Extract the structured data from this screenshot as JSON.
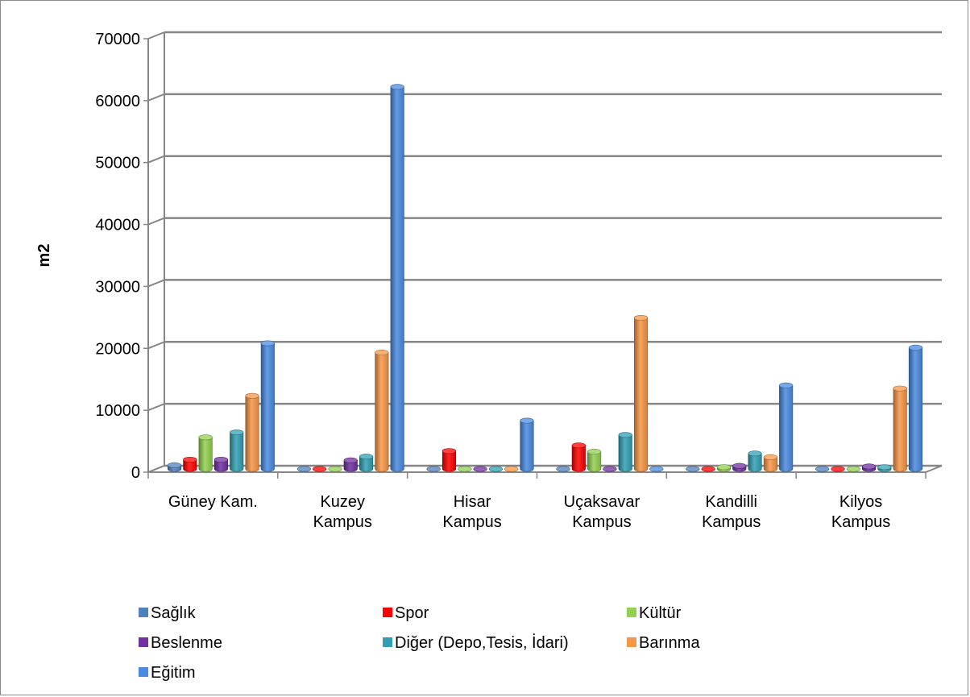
{
  "chart_data": {
    "type": "bar",
    "three_d": true,
    "title": "",
    "xlabel": "",
    "ylabel": "m2",
    "ylim": [
      0,
      70000
    ],
    "yticks": [
      0,
      10000,
      20000,
      30000,
      40000,
      50000,
      60000,
      70000
    ],
    "grid": true,
    "legend_position": "bottom",
    "categories": [
      [
        "Güney Kam."
      ],
      [
        "Kuzey",
        "Kampus"
      ],
      [
        "Hisar",
        "Kampus"
      ],
      [
        "Uçaksavar",
        "Kampus"
      ],
      [
        "Kandilli",
        "Kampus"
      ],
      [
        "Kilyos",
        "Kampus"
      ]
    ],
    "series": [
      {
        "name": "Sağlık",
        "color": "#4f81bd",
        "values": [
          600,
          0,
          0,
          0,
          0,
          0
        ]
      },
      {
        "name": "Spor",
        "color": "#ff0000",
        "values": [
          1500,
          0,
          2900,
          3800,
          0,
          0
        ]
      },
      {
        "name": "Kültür",
        "color": "#92d050",
        "values": [
          5100,
          0,
          0,
          2800,
          300,
          0
        ]
      },
      {
        "name": "Beslenme",
        "color": "#7030a0",
        "values": [
          1500,
          1400,
          0,
          0,
          500,
          400
        ]
      },
      {
        "name": "Diğer (Depo,Tesis, İdari)",
        "color": "#31a0b4",
        "values": [
          5900,
          2000,
          0,
          5500,
          2500,
          300
        ]
      },
      {
        "name": "Barınma",
        "color": "#f79646",
        "values": [
          11800,
          18800,
          0,
          24400,
          1900,
          13000
        ]
      },
      {
        "name": "Eğitim",
        "color": "#4a8be0",
        "values": [
          20300,
          61700,
          7800,
          0,
          13500,
          19600
        ]
      }
    ]
  }
}
